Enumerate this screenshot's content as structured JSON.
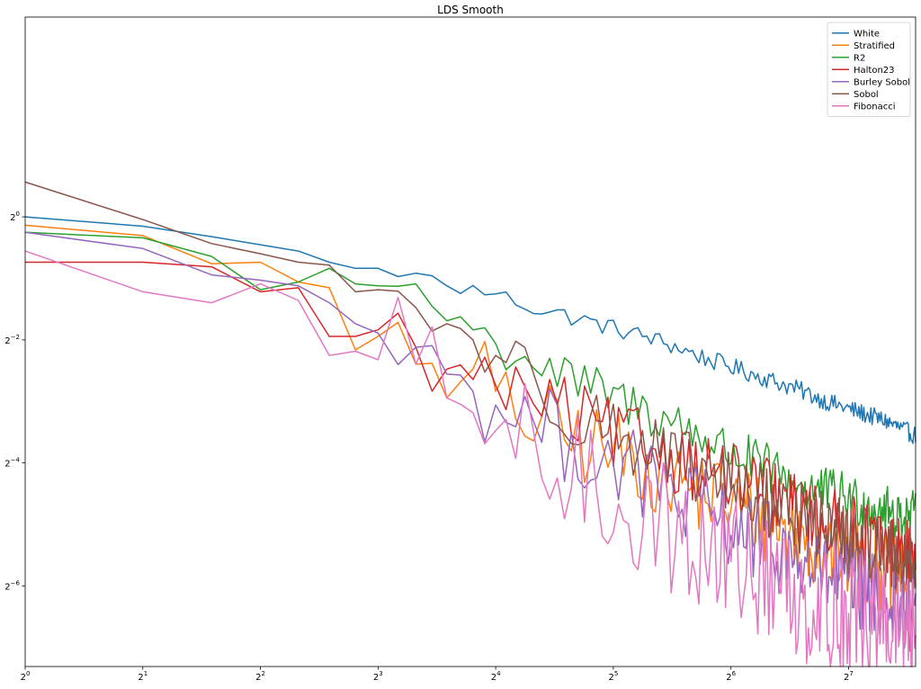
{
  "chart_data": {
    "type": "line",
    "title": "LDS Smooth",
    "xlabel": "",
    "ylabel": "",
    "x_scale": "log2",
    "y_scale": "log2",
    "xlim": [
      1,
      190
    ],
    "ylim": [
      0.0063,
      9.5
    ],
    "grid": false,
    "legend_position": "top-right",
    "x_ticks": [
      {
        "base": "2",
        "exp": "0",
        "value": 1
      },
      {
        "base": "2",
        "exp": "1",
        "value": 2
      },
      {
        "base": "2",
        "exp": "2",
        "value": 4
      },
      {
        "base": "2",
        "exp": "3",
        "value": 8
      },
      {
        "base": "2",
        "exp": "4",
        "value": 16
      },
      {
        "base": "2",
        "exp": "5",
        "value": 32
      },
      {
        "base": "2",
        "exp": "6",
        "value": 64
      },
      {
        "base": "2",
        "exp": "7",
        "value": 128
      }
    ],
    "y_ticks": [
      {
        "base": "2",
        "exp": "0",
        "value": 1
      },
      {
        "base": "2",
        "exp": "−2",
        "value": 0.25
      },
      {
        "base": "2",
        "exp": "−4",
        "value": 0.0625
      },
      {
        "base": "2",
        "exp": "−6",
        "value": 0.015625
      }
    ],
    "series": [
      {
        "name": "White",
        "color": "#1f77b4",
        "anchors": [
          [
            1,
            1.0
          ],
          [
            2,
            0.9
          ],
          [
            3,
            0.8
          ],
          [
            4,
            0.73
          ],
          [
            5,
            0.68
          ],
          [
            6,
            0.6
          ],
          [
            7,
            0.56
          ],
          [
            8,
            0.56
          ],
          [
            9,
            0.51
          ],
          [
            10,
            0.53
          ],
          [
            12,
            0.46
          ],
          [
            16,
            0.42
          ],
          [
            20,
            0.36
          ],
          [
            24,
            0.33
          ],
          [
            32,
            0.285
          ],
          [
            40,
            0.255
          ],
          [
            48,
            0.225
          ],
          [
            56,
            0.2
          ],
          [
            64,
            0.185
          ],
          [
            80,
            0.16
          ],
          [
            96,
            0.142
          ],
          [
            112,
            0.125
          ],
          [
            128,
            0.115
          ],
          [
            160,
            0.1
          ],
          [
            190,
            0.085
          ]
        ],
        "noise": 0.025
      },
      {
        "name": "Stratified",
        "color": "#ff7f0e",
        "anchors": [
          [
            1,
            0.91
          ],
          [
            2,
            0.81
          ],
          [
            3,
            0.59
          ],
          [
            4,
            0.6
          ],
          [
            5,
            0.48
          ],
          [
            6,
            0.45
          ],
          [
            8,
            0.26
          ],
          [
            10,
            0.19
          ],
          [
            12,
            0.13
          ],
          [
            14,
            0.18
          ],
          [
            16,
            0.14
          ],
          [
            20,
            0.1
          ],
          [
            24,
            0.085
          ],
          [
            32,
            0.07
          ],
          [
            40,
            0.06
          ],
          [
            48,
            0.05
          ],
          [
            64,
            0.04
          ],
          [
            80,
            0.033
          ],
          [
            96,
            0.027
          ],
          [
            128,
            0.022
          ],
          [
            160,
            0.019
          ],
          [
            190,
            0.016
          ]
        ],
        "noise": 0.12
      },
      {
        "name": "R2",
        "color": "#2ca02c",
        "anchors": [
          [
            1,
            0.84
          ],
          [
            2,
            0.79
          ],
          [
            3,
            0.64
          ],
          [
            4,
            0.44
          ],
          [
            5,
            0.48
          ],
          [
            6,
            0.56
          ],
          [
            7,
            0.47
          ],
          [
            8,
            0.46
          ],
          [
            10,
            0.47
          ],
          [
            12,
            0.31
          ],
          [
            14,
            0.28
          ],
          [
            16,
            0.24
          ],
          [
            20,
            0.2
          ],
          [
            24,
            0.16
          ],
          [
            32,
            0.13
          ],
          [
            40,
            0.11
          ],
          [
            48,
            0.095
          ],
          [
            56,
            0.08
          ],
          [
            64,
            0.07
          ],
          [
            80,
            0.058
          ],
          [
            96,
            0.048
          ],
          [
            128,
            0.042
          ],
          [
            160,
            0.036
          ],
          [
            190,
            0.034
          ]
        ],
        "noise": 0.07
      },
      {
        "name": "Halton23",
        "color": "#d62728",
        "anchors": [
          [
            1,
            0.6
          ],
          [
            2,
            0.6
          ],
          [
            3,
            0.57
          ],
          [
            4,
            0.43
          ],
          [
            5,
            0.45
          ],
          [
            6,
            0.26
          ],
          [
            7,
            0.26
          ],
          [
            8,
            0.28
          ],
          [
            10,
            0.23
          ],
          [
            12,
            0.18
          ],
          [
            14,
            0.16
          ],
          [
            16,
            0.15
          ],
          [
            20,
            0.13
          ],
          [
            24,
            0.11
          ],
          [
            32,
            0.085
          ],
          [
            40,
            0.075
          ],
          [
            48,
            0.065
          ],
          [
            64,
            0.052
          ],
          [
            80,
            0.044
          ],
          [
            96,
            0.036
          ],
          [
            128,
            0.029
          ],
          [
            160,
            0.024
          ],
          [
            190,
            0.021
          ]
        ],
        "noise": 0.1
      },
      {
        "name": "Burley Sobol",
        "color": "#9467bd",
        "anchors": [
          [
            1,
            0.84
          ],
          [
            2,
            0.7
          ],
          [
            3,
            0.52
          ],
          [
            4,
            0.49
          ],
          [
            5,
            0.46
          ],
          [
            6,
            0.38
          ],
          [
            7,
            0.3
          ],
          [
            8,
            0.27
          ],
          [
            10,
            0.23
          ],
          [
            12,
            0.17
          ],
          [
            14,
            0.14
          ],
          [
            16,
            0.12
          ],
          [
            20,
            0.1
          ],
          [
            24,
            0.08
          ],
          [
            32,
            0.064
          ],
          [
            40,
            0.05
          ],
          [
            48,
            0.041
          ],
          [
            64,
            0.031
          ],
          [
            80,
            0.025
          ],
          [
            96,
            0.02
          ],
          [
            128,
            0.016
          ],
          [
            160,
            0.013
          ],
          [
            190,
            0.011
          ]
        ],
        "noise": 0.12
      },
      {
        "name": "Sobol",
        "color": "#8c564b",
        "anchors": [
          [
            1,
            1.48
          ],
          [
            2,
            0.97
          ],
          [
            3,
            0.74
          ],
          [
            4,
            0.66
          ],
          [
            5,
            0.6
          ],
          [
            6,
            0.58
          ],
          [
            7,
            0.43
          ],
          [
            8,
            0.44
          ],
          [
            10,
            0.36
          ],
          [
            12,
            0.3
          ],
          [
            14,
            0.25
          ],
          [
            16,
            0.21
          ],
          [
            20,
            0.16
          ],
          [
            24,
            0.12
          ],
          [
            32,
            0.09
          ],
          [
            40,
            0.072
          ],
          [
            48,
            0.06
          ],
          [
            64,
            0.048
          ],
          [
            80,
            0.04
          ],
          [
            96,
            0.034
          ],
          [
            128,
            0.027
          ],
          [
            160,
            0.023
          ],
          [
            190,
            0.02
          ]
        ],
        "noise": 0.1
      },
      {
        "name": "Fibonacci",
        "color": "#e377c2",
        "anchors": [
          [
            1,
            0.68
          ],
          [
            2,
            0.43
          ],
          [
            3,
            0.38
          ],
          [
            4,
            0.47
          ],
          [
            5,
            0.39
          ],
          [
            6,
            0.21
          ],
          [
            7,
            0.22
          ],
          [
            8,
            0.2
          ],
          [
            10,
            0.19
          ],
          [
            12,
            0.13
          ],
          [
            14,
            0.11
          ],
          [
            16,
            0.09
          ],
          [
            20,
            0.07
          ],
          [
            24,
            0.055
          ],
          [
            32,
            0.042
          ],
          [
            40,
            0.033
          ],
          [
            48,
            0.027
          ],
          [
            64,
            0.021
          ],
          [
            80,
            0.017
          ],
          [
            96,
            0.014
          ],
          [
            128,
            0.0115
          ],
          [
            160,
            0.0095
          ],
          [
            190,
            0.008
          ]
        ],
        "noise": 0.18
      }
    ]
  }
}
